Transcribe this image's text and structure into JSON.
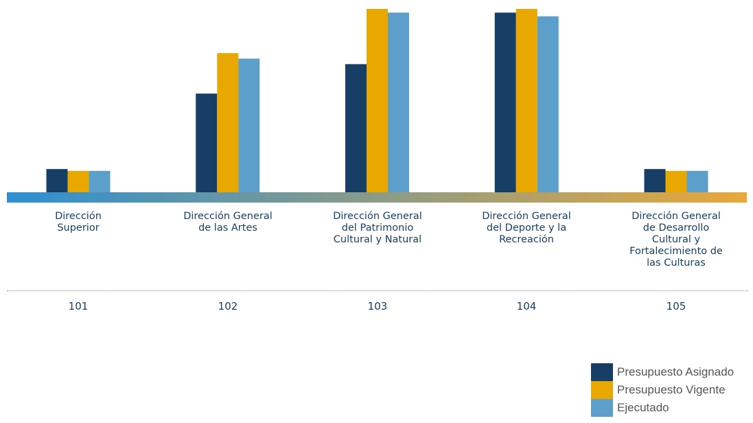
{
  "chart_data": {
    "type": "bar",
    "title": "",
    "xlabel": "",
    "ylabel": "",
    "ylim": [
      0,
      100
    ],
    "categories": [
      "Dirección\nSuperior",
      "Dirección General\nde las Artes",
      "Dirección General\ndel Patrimonio\nCultural y Natural",
      "Dirección General\ndel Deporte y la\nRecreación",
      "Dirección General\nde Desarrollo\nCultural y\nFortalecimiento de\nlas Culturas"
    ],
    "codes": [
      "101",
      "102",
      "103",
      "104",
      "105"
    ],
    "series": [
      {
        "name": "Presupuesto Asignado",
        "color": "#173f66",
        "values": [
          13,
          54,
          70,
          98,
          13
        ]
      },
      {
        "name": "Presupuesto Vigente",
        "color": "#e9a800",
        "values": [
          12,
          76,
          100,
          100,
          12
        ]
      },
      {
        "name": "Ejecutado",
        "color": "#5b9fca",
        "values": [
          12,
          73,
          98,
          96,
          12
        ]
      }
    ],
    "baseline_gradient": [
      "#2d8fd3",
      "#e9a83a"
    ],
    "grid": false,
    "legend_position": "bottom-right"
  }
}
